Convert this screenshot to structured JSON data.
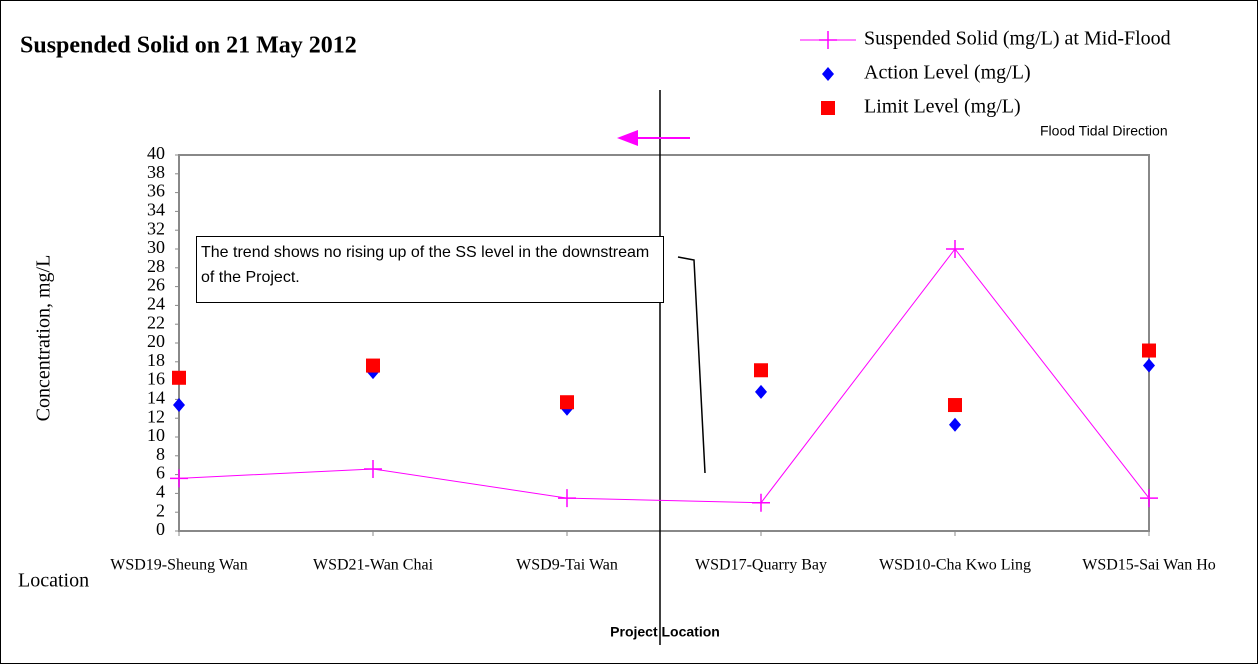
{
  "chart_data": {
    "type": "line",
    "title": "Suspended Solid on 21 May 2012",
    "x_label": "Location",
    "y_label": "Concentration, mg/L",
    "categories": [
      "WSD19-Sheung Wan",
      "WSD21-Wan Chai",
      "WSD9-Tai Wan",
      "WSD17-Quarry Bay",
      "WSD10-Cha Kwo Ling",
      "WSD15-Sai Wan Ho"
    ],
    "series": [
      {
        "name": "Suspended Solid (mg/L) at Mid-Flood",
        "type": "line",
        "marker": "plus",
        "color": "#ff00ff",
        "values": [
          5.6,
          6.6,
          3.5,
          3.0,
          30.0,
          3.5
        ]
      },
      {
        "name": "Action Level (mg/L)",
        "type": "scatter",
        "marker": "diamond",
        "color": "#0000ff",
        "values": [
          13.4,
          16.9,
          13.0,
          14.8,
          11.3,
          17.6
        ]
      },
      {
        "name": "Limit Level (mg/L)",
        "type": "scatter",
        "marker": "square",
        "color": "#ff0000",
        "values": [
          16.3,
          17.6,
          13.7,
          17.1,
          13.4,
          19.2
        ]
      }
    ],
    "ylim": [
      0,
      40
    ],
    "yticks": [
      0,
      2,
      4,
      6,
      8,
      10,
      12,
      14,
      16,
      18,
      20,
      22,
      24,
      26,
      28,
      30,
      32,
      34,
      36,
      38,
      40
    ],
    "grid": false,
    "legend": "top-right",
    "annotations": [
      {
        "text": "The trend shows no rising up of the SS level in the downstream of the Project."
      },
      {
        "text": "Flood Tidal Direction"
      },
      {
        "text": "Project Location"
      }
    ]
  }
}
